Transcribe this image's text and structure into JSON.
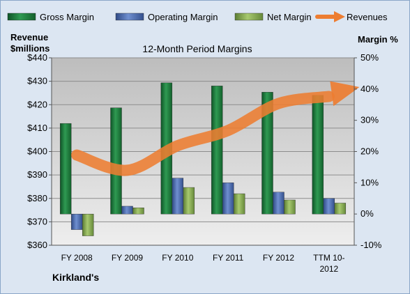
{
  "chart_data": {
    "type": "bar",
    "title": "12-Month Period Margins",
    "categories": [
      "FY 2008",
      "FY 2009",
      "FY 2010",
      "FY 2011",
      "FY 2012",
      "TTM 10-2012"
    ],
    "category_lines": [
      [
        "FY 2008"
      ],
      [
        "FY 2009"
      ],
      [
        "FY 2010"
      ],
      [
        "FY 2011"
      ],
      [
        "FY 2012"
      ],
      [
        "TTM 10-",
        "2012"
      ]
    ],
    "series": [
      {
        "name": "Gross Margin",
        "kind": "bar",
        "axis": "right",
        "color": "#1e7a3e",
        "values": [
          29,
          34,
          42,
          41,
          39,
          38
        ]
      },
      {
        "name": "Operating Margin",
        "kind": "bar",
        "axis": "right",
        "color": "#4f6fb0",
        "values": [
          -5,
          2.5,
          11.5,
          10,
          7,
          5
        ]
      },
      {
        "name": "Net Margin",
        "kind": "bar",
        "axis": "right",
        "color": "#8fb35a",
        "values": [
          -7,
          2,
          8.5,
          6.5,
          4.5,
          3.5
        ]
      },
      {
        "name": "Revenues",
        "kind": "line",
        "axis": "left",
        "color": "#ed7d31",
        "values": [
          398.5,
          392,
          402.5,
          409,
          420.5,
          423.5
        ]
      }
    ],
    "left_axis": {
      "label_lines": [
        "Revenue",
        "$millions"
      ],
      "min": 360,
      "max": 440,
      "ticks": [
        "$360",
        "$370",
        "$380",
        "$390",
        "$400",
        "$410",
        "$420",
        "$430",
        "$440"
      ]
    },
    "right_axis": {
      "label": "Margin %",
      "min": -10,
      "max": 50,
      "ticks": [
        "-10%",
        "0%",
        "10%",
        "20%",
        "30%",
        "40%",
        "50%"
      ]
    },
    "legend": {
      "placement": "top"
    },
    "grid": true,
    "footer": "Kirkland's"
  }
}
